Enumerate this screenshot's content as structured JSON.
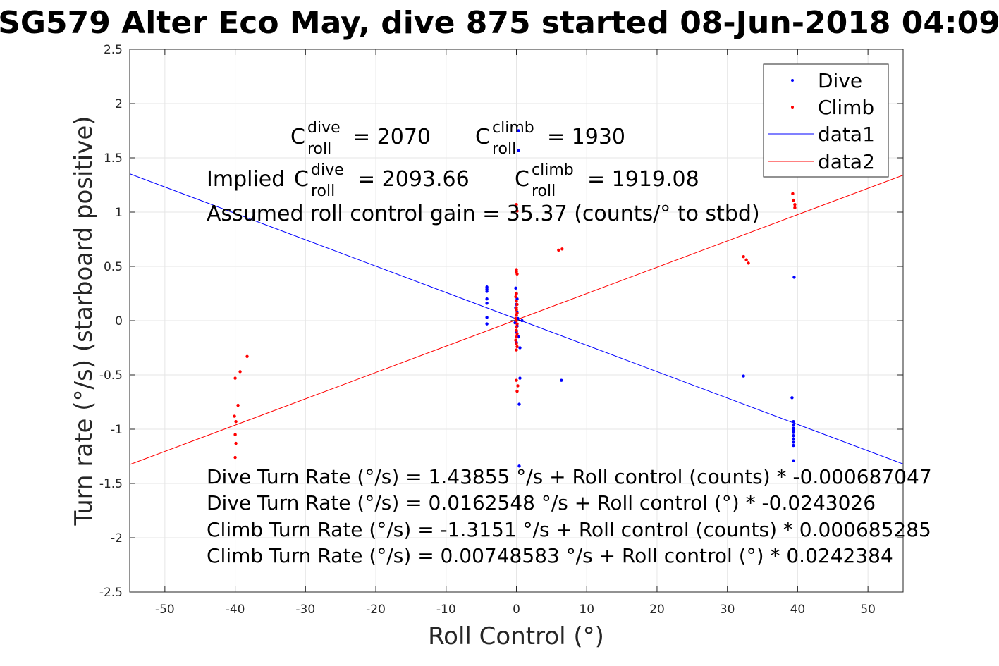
{
  "chart_data": {
    "type": "scatter",
    "title": "SG579 Alter Eco May, dive 875 started 08-Jun-2018 04:09",
    "xlabel": "Roll Control (°)",
    "ylabel": "Turn rate (°/s) (starboard positive)",
    "xlim": [
      -55,
      55
    ],
    "ylim": [
      -2.5,
      2.5
    ],
    "xticks": [
      -50,
      -40,
      -30,
      -20,
      -10,
      0,
      10,
      20,
      30,
      40,
      50
    ],
    "yticks": [
      -2.5,
      -2,
      -1.5,
      -1,
      -0.5,
      0,
      0.5,
      1,
      1.5,
      2,
      2.5
    ],
    "ytick_labels": [
      "-2.5",
      "-2",
      "-1.5",
      "-1",
      "-0.5",
      "0",
      "0.5",
      "1",
      "1.5",
      "2",
      "2.5"
    ],
    "grid": true,
    "legend_position": "top-right",
    "series": [
      {
        "name": "Dive",
        "color": "#0000ff",
        "kind": "scatter",
        "points": [
          [
            -4.2,
            0.31
          ],
          [
            -4.2,
            0.29
          ],
          [
            -4.2,
            0.27
          ],
          [
            -4.2,
            0.2
          ],
          [
            -4.2,
            0.16
          ],
          [
            -4.2,
            0.03
          ],
          [
            -4.2,
            -0.03
          ],
          [
            -0.1,
            0.3
          ],
          [
            0,
            0.25
          ],
          [
            0.1,
            0.2
          ],
          [
            0,
            0.15
          ],
          [
            -0.1,
            0.12
          ],
          [
            0.1,
            0.08
          ],
          [
            0,
            0.05
          ],
          [
            0.2,
            0.02
          ],
          [
            0,
            0
          ],
          [
            -0.2,
            -0.02
          ],
          [
            0.1,
            -0.05
          ],
          [
            0,
            -0.1
          ],
          [
            0.3,
            -0.15
          ],
          [
            0,
            -0.2
          ],
          [
            0.5,
            -0.25
          ],
          [
            0.5,
            -0.53
          ],
          [
            0.4,
            -0.77
          ],
          [
            0.4,
            -1.34
          ],
          [
            0.3,
            1.75
          ],
          [
            0.3,
            1.57
          ],
          [
            0.8,
            0
          ],
          [
            6.4,
            -0.55
          ],
          [
            32.3,
            -0.51
          ],
          [
            39.2,
            -0.71
          ],
          [
            39.4,
            -0.93
          ],
          [
            39.4,
            -0.96
          ],
          [
            39.4,
            -0.99
          ],
          [
            39.4,
            -1.01
          ],
          [
            39.4,
            -1.03
          ],
          [
            39.4,
            -1.06
          ],
          [
            39.4,
            -1.09
          ],
          [
            39.4,
            -1.12
          ],
          [
            39.4,
            -1.15
          ],
          [
            39.4,
            -1.29
          ],
          [
            39.5,
            0.4
          ]
        ]
      },
      {
        "name": "Climb",
        "color": "#ff0000",
        "kind": "scatter",
        "points": [
          [
            -40,
            -0.53
          ],
          [
            -40.1,
            -0.88
          ],
          [
            -39.9,
            -0.93
          ],
          [
            -40,
            -1.05
          ],
          [
            -39.9,
            -1.13
          ],
          [
            -40,
            -1.26
          ],
          [
            -39.6,
            -0.78
          ],
          [
            -39.3,
            -0.47
          ],
          [
            -38.3,
            -0.33
          ],
          [
            0,
            1.07
          ],
          [
            0.1,
            1.01
          ],
          [
            0,
            0.47
          ],
          [
            0,
            0.45
          ],
          [
            0.1,
            0.43
          ],
          [
            0,
            0.25
          ],
          [
            -0.1,
            0.22
          ],
          [
            0,
            0.18
          ],
          [
            0.1,
            0.15
          ],
          [
            0,
            0.12
          ],
          [
            0,
            0.1
          ],
          [
            0.1,
            0.07
          ],
          [
            0,
            0.05
          ],
          [
            -0.1,
            0.02
          ],
          [
            0,
            0
          ],
          [
            0.1,
            -0.03
          ],
          [
            0,
            -0.06
          ],
          [
            0,
            -0.09
          ],
          [
            0.1,
            -0.12
          ],
          [
            0,
            -0.15
          ],
          [
            -0.1,
            -0.18
          ],
          [
            0,
            -0.21
          ],
          [
            0.1,
            -0.24
          ],
          [
            0,
            -0.27
          ],
          [
            0,
            -0.55
          ],
          [
            0.2,
            -0.6
          ],
          [
            0.1,
            -0.65
          ],
          [
            6,
            0.65
          ],
          [
            6.5,
            0.66
          ],
          [
            32.3,
            0.59
          ],
          [
            32.7,
            0.56
          ],
          [
            33,
            0.53
          ],
          [
            39.3,
            1.17
          ],
          [
            39.4,
            1.11
          ],
          [
            39.6,
            1.07
          ],
          [
            39.6,
            1.04
          ]
        ]
      }
    ],
    "fits": [
      {
        "name": "data1",
        "color": "#0000ff",
        "intercept": 0.0162548,
        "slope": -0.0243026
      },
      {
        "name": "data2",
        "color": "#ff0000",
        "intercept": 0.00748583,
        "slope": 0.0242384
      }
    ],
    "annotations": {
      "c_roll_dive": "= 2070",
      "c_roll_climb": "= 1930",
      "implied_prefix": "Implied",
      "implied_dive": "= 2093.66",
      "implied_climb": "= 1919.08",
      "c_letter": "C",
      "sub_roll": "roll",
      "sup_dive": "dive",
      "sup_climb": "climb",
      "gain": "Assumed roll control gain = 35.37 (counts/° to stbd)",
      "equations": [
        "Dive Turn Rate (°/s) = 1.43855 °/s + Roll control (counts) * -0.000687047",
        "Dive Turn Rate (°/s) = 0.0162548 °/s + Roll control (°) * -0.0243026",
        "Climb Turn Rate (°/s) = -1.3151 °/s + Roll control (counts) * 0.000685285",
        "Climb Turn Rate (°/s) = 0.00748583 °/s + Roll control (°) * 0.0242384"
      ]
    }
  }
}
